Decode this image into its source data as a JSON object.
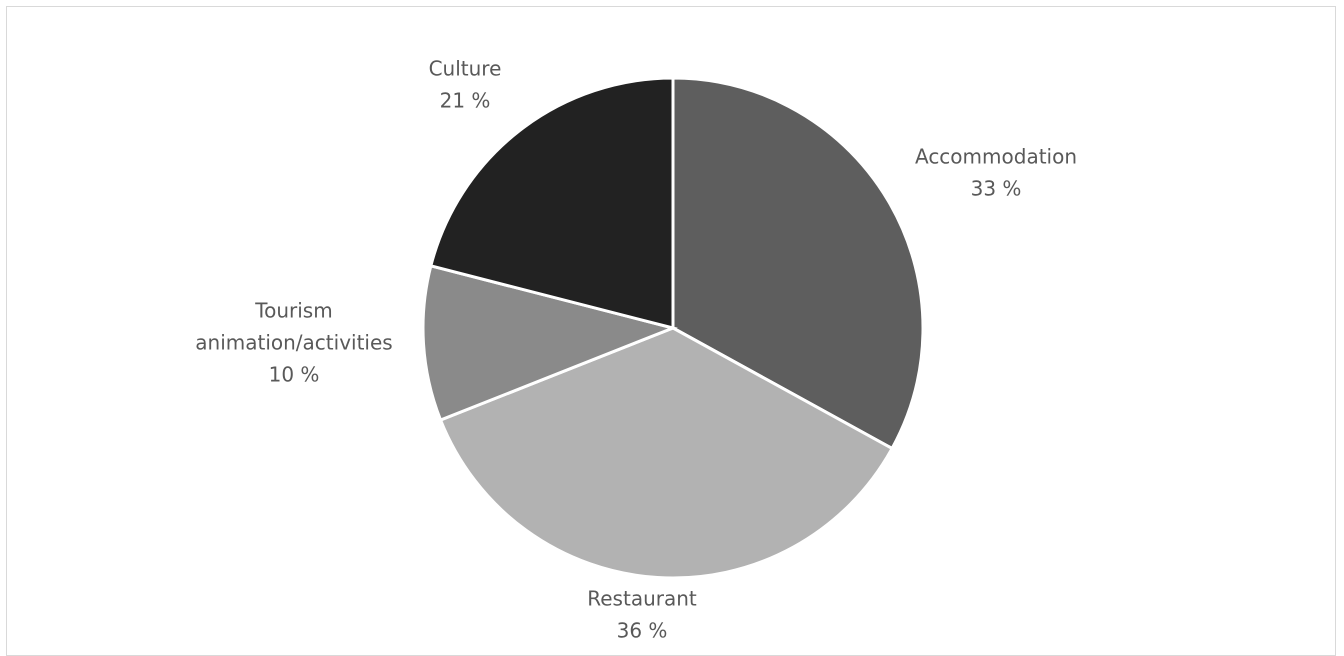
{
  "chart_data": {
    "type": "pie",
    "title": "",
    "start_angle_deg": 0,
    "direction": "clockwise",
    "slices": [
      {
        "label_lines": [
          "Accommodation"
        ],
        "percent_label": "33 %",
        "value": 33,
        "color": "#5e5e5e"
      },
      {
        "label_lines": [
          "Restaurant"
        ],
        "percent_label": "36 %",
        "value": 36,
        "color": "#b2b2b2"
      },
      {
        "label_lines": [
          "Tourism",
          "animation/activities"
        ],
        "percent_label": "10 %",
        "value": 10,
        "color": "#8a8a8a"
      },
      {
        "label_lines": [
          "Culture"
        ],
        "percent_label": "21 %",
        "value": 21,
        "color": "#222222"
      }
    ],
    "legend": "none",
    "frame_border_color": "#d9d9d9",
    "label_color": "#595959"
  }
}
